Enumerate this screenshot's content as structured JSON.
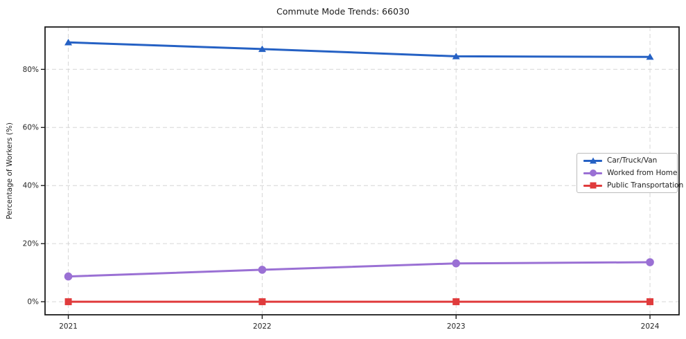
{
  "chart_data": {
    "type": "line",
    "title": "Commute Mode Trends: 66030",
    "xlabel": "",
    "ylabel": "Percentage of Workers (%)",
    "x": [
      2021,
      2022,
      2023,
      2024
    ],
    "x_tick_labels": [
      "2021",
      "2022",
      "2023",
      "2024"
    ],
    "xlim": [
      2020.88,
      2024.15
    ],
    "y_ticks": [
      0,
      20,
      40,
      60,
      80
    ],
    "y_tick_labels": [
      "0%",
      "20%",
      "40%",
      "60%",
      "80%"
    ],
    "ylim": [
      -4.5,
      94.6
    ],
    "grid": true,
    "grid_color": "#d6d6d6",
    "axis_color": "#1c1c1c",
    "legend_position": "middle-right",
    "series": [
      {
        "name": "Car/Truck/Van",
        "color": "#2561c4",
        "marker": "triangle",
        "values": [
          89.3,
          87.0,
          84.5,
          84.3
        ]
      },
      {
        "name": "Worked from Home",
        "color": "#9a70d4",
        "marker": "circle",
        "values": [
          8.7,
          11.0,
          13.2,
          13.6
        ]
      },
      {
        "name": "Public Transportation",
        "color": "#e03b3c",
        "marker": "square",
        "values": [
          0.0,
          0.0,
          0.0,
          0.0
        ]
      }
    ]
  }
}
